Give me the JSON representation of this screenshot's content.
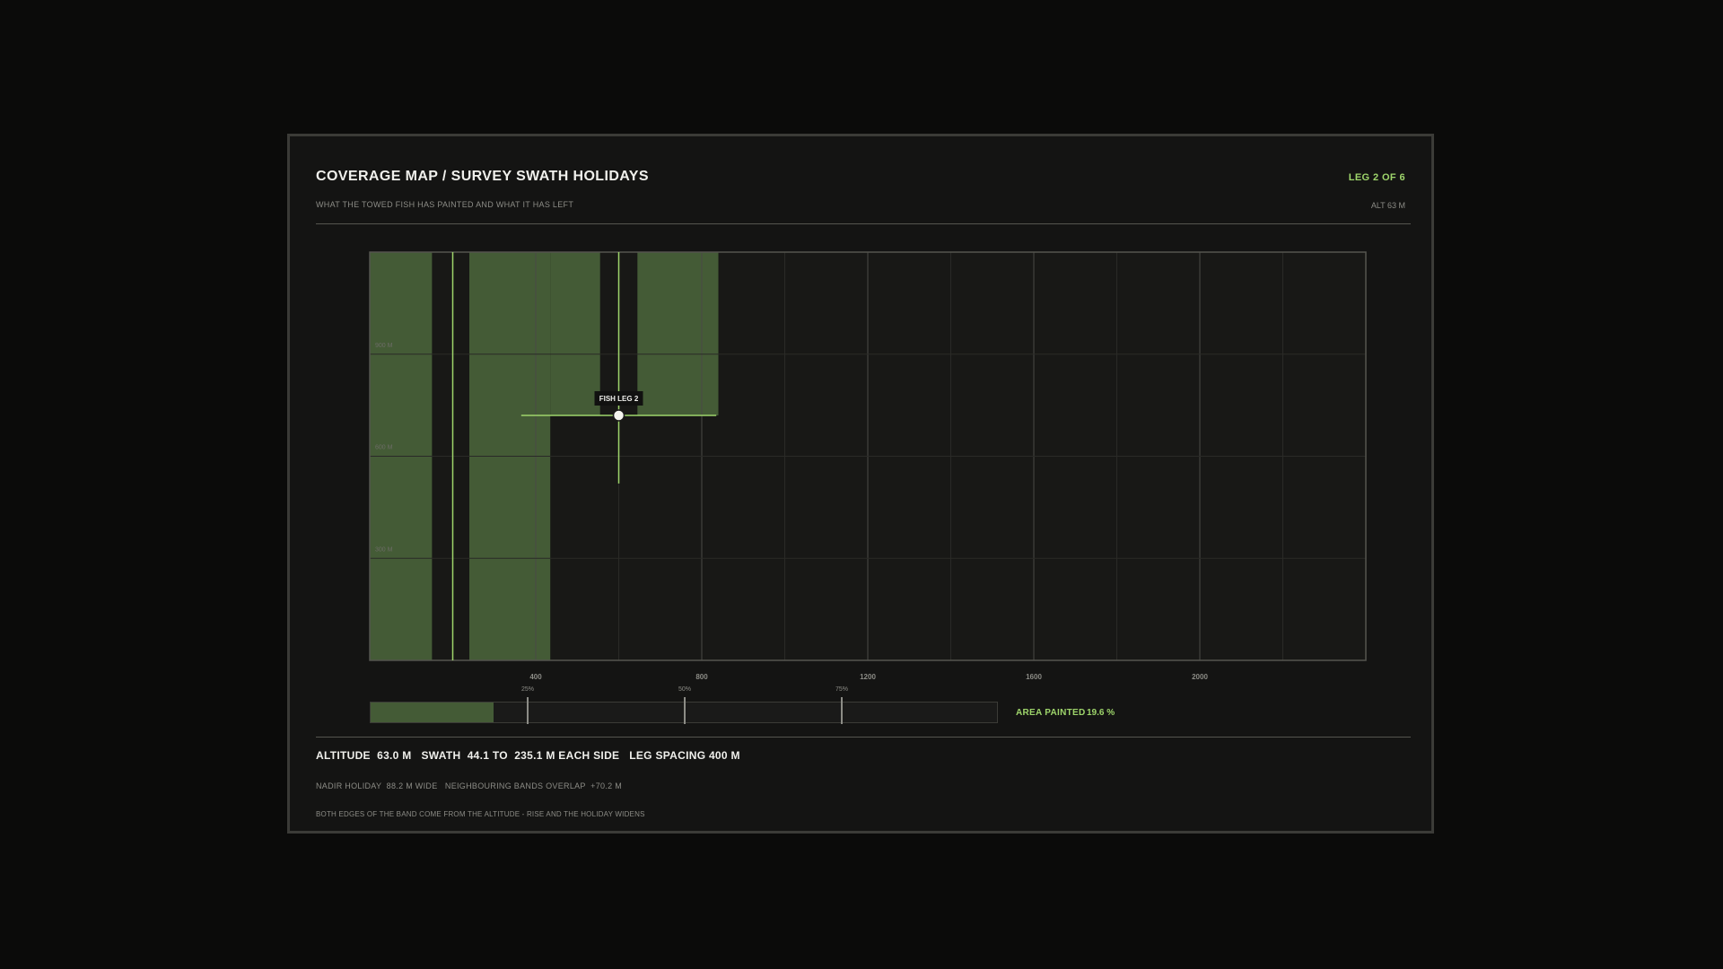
{
  "header": {
    "title": "COVERAGE MAP / SURVEY SWATH HOLIDAYS",
    "subtitle": "WHAT THE TOWED FISH HAS PAINTED AND WHAT IT HAS LEFT",
    "leg": "LEG 2 OF 6",
    "alt": "ALT 63 M"
  },
  "chart_data": {
    "type": "area",
    "x_ticks": [
      400,
      800,
      1200,
      1600,
      2000
    ],
    "x_tick_labels": [
      "400",
      "800",
      "1200",
      "1600",
      "2000"
    ],
    "y_ticks": [
      300,
      600,
      900
    ],
    "y_tick_labels": [
      "300 M",
      "600 M",
      "900 M"
    ],
    "xlim": [
      0,
      2400
    ],
    "ylim": [
      0,
      1200
    ],
    "leg_spacing": 400,
    "nadir_holiday_width": 88.2,
    "legs": [
      {
        "x": 200,
        "y_from": 0,
        "y_to": 1200,
        "complete": true
      },
      {
        "x": 600,
        "y_from": 520,
        "y_to": 1200,
        "complete": false
      }
    ],
    "painted_bands": [
      {
        "x_from": 0,
        "x_to": 150,
        "y_from": 0,
        "y_to": 1200
      },
      {
        "x_from": 240,
        "x_to": 435,
        "y_from": 0,
        "y_to": 1200
      },
      {
        "x_from": 435,
        "x_to": 555,
        "y_from": 720,
        "y_to": 1200
      },
      {
        "x_from": 645,
        "x_to": 840,
        "y_from": 720,
        "y_to": 1200
      }
    ],
    "fish": {
      "label": "FISH LEG 2",
      "x": 600,
      "y": 720,
      "swath_left": 235,
      "swath_right": 235
    }
  },
  "progress": {
    "ticks": [
      "25%",
      "50%",
      "75%"
    ],
    "fraction": 0.196,
    "label": "AREA PAINTED",
    "value": "19.6 %"
  },
  "footer": {
    "summary": "ALTITUDE  63.0 M   SWATH  44.1 TO  235.1 M EACH SIDE   LEG SPACING 400 M",
    "detail": "NADIR HOLIDAY  88.2 M WIDE   NEIGHBOURING BANDS OVERLAP  +70.2 M",
    "note": "BOTH EDGES OF THE BAND COME FROM THE ALTITUDE - RISE AND THE HOLIDAY WIDENS"
  },
  "colors": {
    "accent": "#9ed56b",
    "painted": "#445b36",
    "plot_bg": "#181816",
    "grid": "#2a2a27",
    "gridMajor": "#4a4a45"
  }
}
